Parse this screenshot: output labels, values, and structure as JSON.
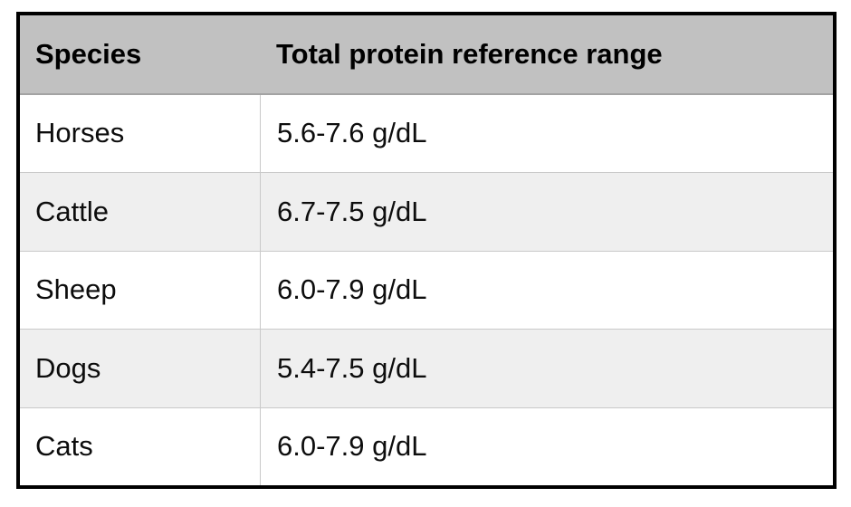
{
  "chart_data": {
    "type": "table",
    "title": "",
    "columns": [
      "Species",
      "Total protein reference range"
    ],
    "rows": [
      {
        "species": "Horses",
        "range": "5.6-7.6 g/dL"
      },
      {
        "species": "Cattle",
        "range": "6.7-7.5 g/dL"
      },
      {
        "species": "Sheep",
        "range": "6.0-7.9 g/dL"
      },
      {
        "species": "Dogs",
        "range": "5.4-7.5 g/dL"
      },
      {
        "species": "Cats",
        "range": "6.0-7.9 g/dL"
      }
    ]
  },
  "table": {
    "header": {
      "species": "Species",
      "range": "Total protein reference range"
    },
    "rows": [
      {
        "species": "Horses",
        "range": "5.6-7.6 g/dL"
      },
      {
        "species": "Cattle",
        "range": "6.7-7.5 g/dL"
      },
      {
        "species": "Sheep",
        "range": "6.0-7.9 g/dL"
      },
      {
        "species": "Dogs",
        "range": "5.4-7.5 g/dL"
      },
      {
        "species": "Cats",
        "range": "6.0-7.9 g/dL"
      }
    ],
    "colors": {
      "header_bg": "#c1c1c1",
      "stripe_bg": "#efefef",
      "row_bg": "#ffffff",
      "outer_border": "#000000",
      "divider": "#c9c9c9"
    }
  }
}
